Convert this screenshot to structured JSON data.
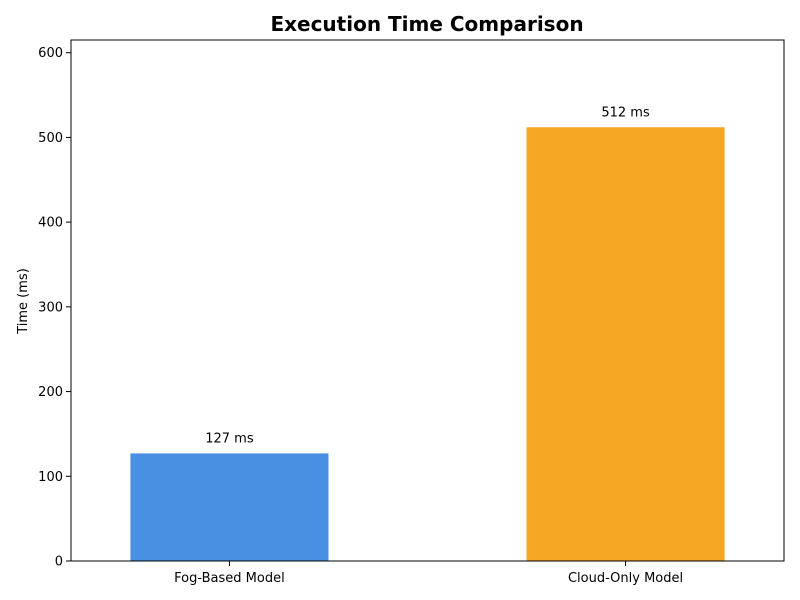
{
  "chart_data": {
    "type": "bar",
    "title": "Execution Time Comparison",
    "xlabel": "",
    "ylabel": "Time (ms)",
    "categories": [
      "Fog-Based Model",
      "Cloud-Only Model"
    ],
    "values": [
      127,
      512
    ],
    "data_labels": [
      "127 ms",
      "512 ms"
    ],
    "colors": [
      "#4a90e2",
      "#f5a623"
    ],
    "ylim": [
      0,
      615
    ],
    "yticks": [
      0,
      100,
      200,
      300,
      400,
      500,
      600
    ],
    "grid": false,
    "legend": "none"
  }
}
